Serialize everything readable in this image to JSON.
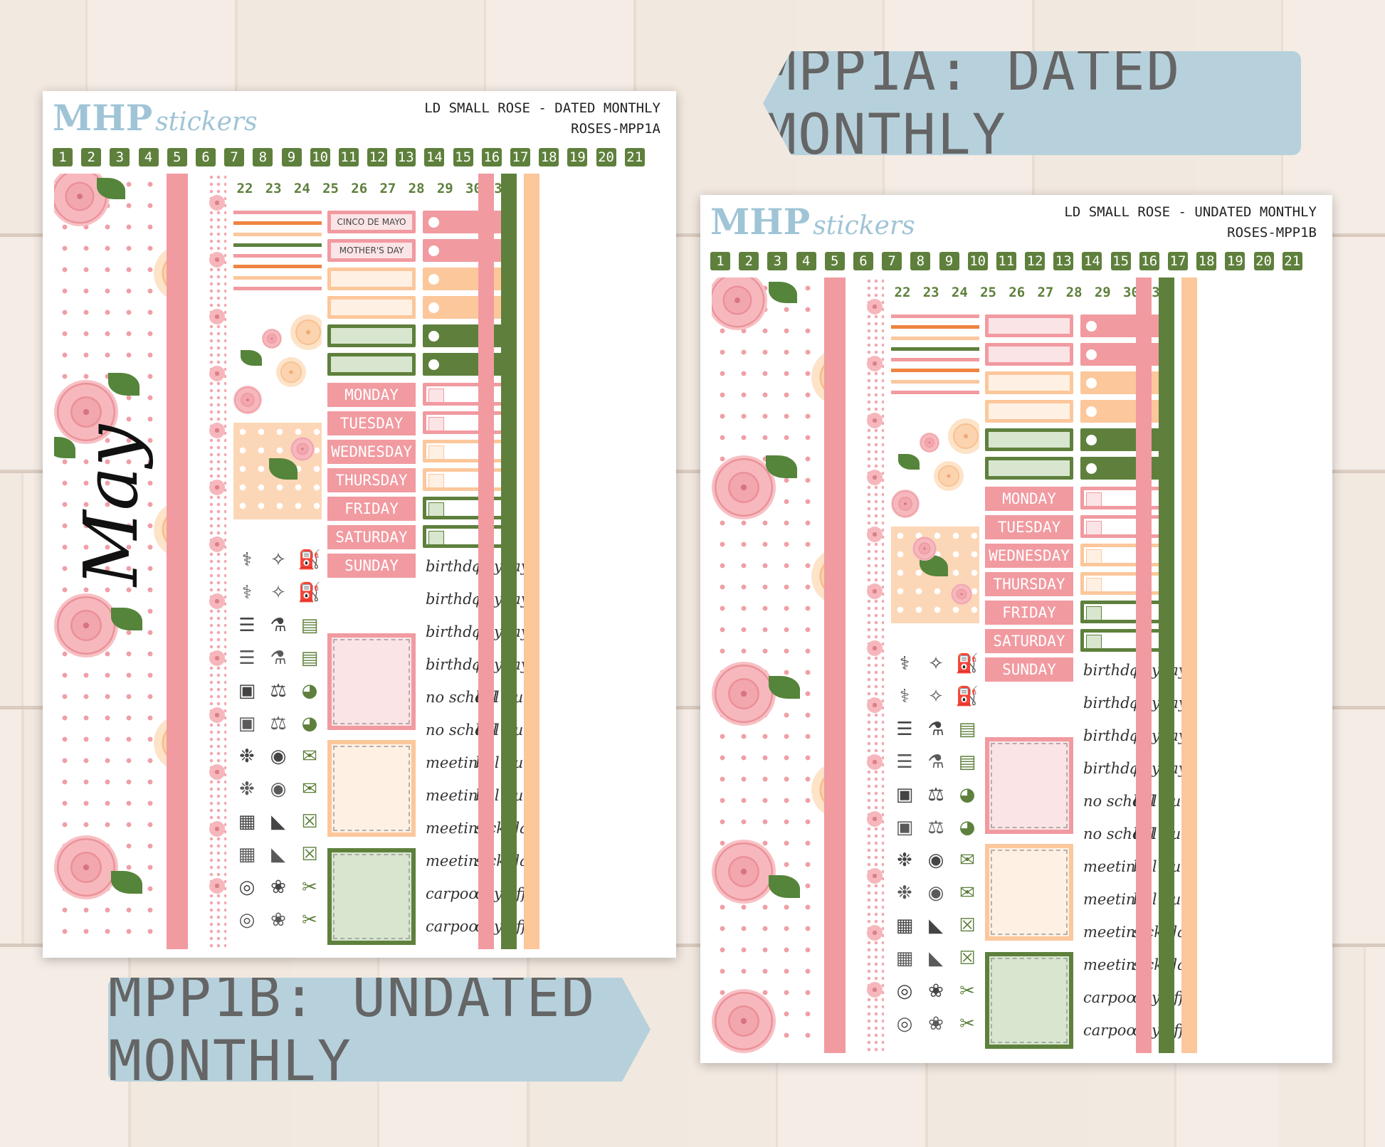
{
  "banners": {
    "dated": "MPP1A: DATED MONTHLY",
    "undated": "MPP1B: UNDATED MONTHLY"
  },
  "sheet_a": {
    "logo_main": "MHP",
    "logo_sub": "stickers",
    "title_line1": "LD SMALL ROSE - DATED MONTHLY",
    "title_line2": "ROSES-MPP1A",
    "month": "May",
    "labels": [
      "CINCO DE MAYO",
      "MOTHER'S DAY"
    ]
  },
  "sheet_b": {
    "logo_main": "MHP",
    "logo_sub": "stickers",
    "title_line1": "LD SMALL ROSE - UNDATED MONTHLY",
    "title_line2": "ROSES-MPP1B"
  },
  "numbers_top": [
    "1",
    "2",
    "3",
    "4",
    "5",
    "6",
    "7",
    "8",
    "9",
    "10",
    "11",
    "12",
    "13",
    "14",
    "15",
    "16",
    "17",
    "18",
    "19",
    "20",
    "21"
  ],
  "numbers_bottom": [
    "22",
    "23",
    "24",
    "25",
    "26",
    "27",
    "28",
    "29",
    "30",
    "31"
  ],
  "days": [
    "MONDAY",
    "TUESDAY",
    "WEDNESDAY",
    "THURSDAY",
    "FRIDAY",
    "SATURDAY",
    "SUNDAY"
  ],
  "words_left": [
    "birthday",
    "birthday",
    "birthday",
    "birthday",
    "no school",
    "no school",
    "meeting",
    "meeting",
    "meeting",
    "meeting",
    "carpool",
    "carpool"
  ],
  "words_right": [
    "payday",
    "payday",
    "payday",
    "payday",
    "bill due",
    "bill due",
    "bill due",
    "bill due",
    "sick day",
    "sick day",
    "day off",
    "day off"
  ],
  "icons": [
    [
      "pill-bottle-icon",
      "tooth-icon",
      "gas-pump-icon"
    ],
    [
      "pill-bottle-icon",
      "tooth-icon",
      "gas-pump-icon"
    ],
    [
      "receipt-icon",
      "cart-icon",
      "book-icon"
    ],
    [
      "receipt-icon",
      "cart-icon",
      "book-icon"
    ],
    [
      "package-icon",
      "scale-icon",
      "piggy-bank-icon"
    ],
    [
      "package-icon",
      "scale-icon",
      "piggy-bank-icon"
    ],
    [
      "stethoscope-icon",
      "dumbbell-icon",
      "envelope-icon"
    ],
    [
      "stethoscope-icon",
      "dumbbell-icon",
      "envelope-icon"
    ],
    [
      "luggage-icon",
      "sneaker-icon",
      "trash-can-icon"
    ],
    [
      "luggage-icon",
      "sneaker-icon",
      "trash-can-icon"
    ],
    [
      "washing-machine-icon",
      "cake-icon",
      "scissors-icon"
    ],
    [
      "washing-machine-icon",
      "cake-icon",
      "scissors-icon"
    ]
  ],
  "colors": {
    "pink": "#f19aa0",
    "pink_light": "#fbe4e6",
    "peach": "#fcc79b",
    "peach_light": "#fef1e4",
    "green": "#5e803c",
    "green_light": "#d8e6cf",
    "orange": "#ee8440",
    "banner": "#b6d1dc"
  }
}
